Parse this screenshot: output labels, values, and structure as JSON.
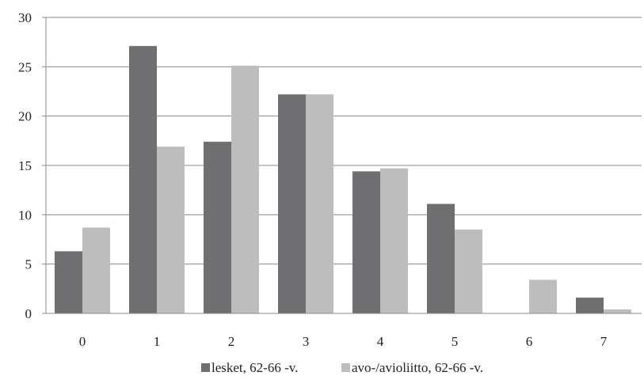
{
  "chart_data": {
    "type": "bar",
    "categories": [
      "0",
      "1",
      "2",
      "3",
      "4",
      "5",
      "6",
      "7"
    ],
    "series": [
      {
        "name": "lesket, 62-66 -v.",
        "color": "#6f6f72",
        "values": [
          6.3,
          27.1,
          17.4,
          22.2,
          14.4,
          11.1,
          0,
          1.6
        ]
      },
      {
        "name": "avo-/avioliitto, 62-66 -v.",
        "color": "#bdbdbd",
        "values": [
          8.7,
          16.9,
          25.1,
          22.2,
          14.7,
          8.5,
          3.4,
          0.4
        ]
      }
    ],
    "yticks": [
      "0",
      "5",
      "10",
      "15",
      "20",
      "25",
      "30"
    ],
    "ylim": [
      0,
      30
    ],
    "grid": true,
    "legend_position": "bottom-center"
  }
}
